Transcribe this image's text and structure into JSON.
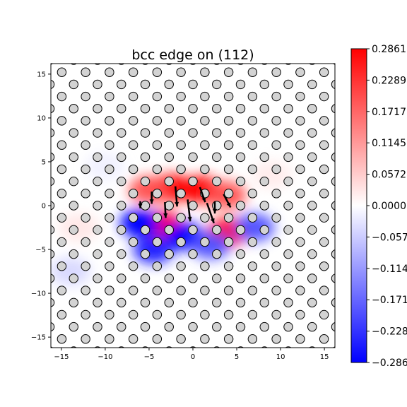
{
  "chart_data": {
    "type": "heatmap",
    "title": "bcc edge on (112)",
    "xlabel": "",
    "ylabel": "",
    "xlim": [
      -16.2,
      16.2
    ],
    "ylim": [
      -16.2,
      16.2
    ],
    "x_ticks": [
      -15,
      -10,
      -5,
      0,
      5,
      10,
      15
    ],
    "y_ticks": [
      -15,
      -10,
      -5,
      0,
      5,
      10,
      15
    ],
    "x_tick_labels": [
      "−15",
      "−10",
      "−5",
      "0",
      "5",
      "10",
      "15"
    ],
    "y_tick_labels": [
      "−15",
      "−10",
      "−5",
      "0",
      "5",
      "10",
      "15"
    ],
    "colormap": "bwr",
    "color_min": -0.2861,
    "color_max": 0.2861,
    "colorbar_ticks": [
      0.2861,
      0.2289,
      0.1717,
      0.1145,
      0.0572,
      0.0,
      -0.0572,
      -0.1145,
      -0.1717,
      -0.2289,
      -0.2861
    ],
    "colorbar_labels": [
      "0.2861",
      "0.2289",
      "0.1717",
      "0.1145",
      "0.0572",
      "0.0000",
      "−0.0572",
      "−0.1145",
      "−0.1717",
      "−0.2289",
      "−0.2861"
    ],
    "lattice": {
      "a1": [
        2.72,
        0.0
      ],
      "a2": [
        1.36,
        1.383
      ],
      "origin": [
        0.0,
        0.0
      ],
      "marker": "circle",
      "marker_face": "#d3d3d3",
      "marker_edge": "#000000"
    },
    "field_blobs": [
      {
        "x": -2.5,
        "y": 2.0,
        "value": 0.2861
      },
      {
        "x": 1.0,
        "y": 1.8,
        "value": 0.2861
      },
      {
        "x": -5.0,
        "y": 1.8,
        "value": 0.2
      },
      {
        "x": 3.8,
        "y": 1.2,
        "value": 0.2
      },
      {
        "x": -3.5,
        "y": -2.2,
        "value": 0.2861
      },
      {
        "x": 4.0,
        "y": -3.0,
        "value": 0.2861
      },
      {
        "x": -13.0,
        "y": -2.5,
        "value": 0.06
      },
      {
        "x": 9.0,
        "y": 3.5,
        "value": 0.05
      },
      {
        "x": -6.0,
        "y": -2.0,
        "value": -0.2861
      },
      {
        "x": -1.0,
        "y": -3.5,
        "value": -0.2861
      },
      {
        "x": 2.0,
        "y": -4.5,
        "value": -0.2
      },
      {
        "x": 7.0,
        "y": -2.5,
        "value": -0.2
      },
      {
        "x": -4.5,
        "y": -5.0,
        "value": -0.25
      },
      {
        "x": -14.0,
        "y": -7.5,
        "value": -0.08
      },
      {
        "x": -10.0,
        "y": 4.5,
        "value": -0.04
      }
    ],
    "arrows": [
      {
        "x": -2.0,
        "y": 2.2,
        "dx": 0.2,
        "dy": -2.3
      },
      {
        "x": -0.6,
        "y": 0.7,
        "dx": 0.3,
        "dy": -2.5
      },
      {
        "x": 0.8,
        "y": 2.1,
        "dx": 0.6,
        "dy": -1.7
      },
      {
        "x": 1.6,
        "y": 0.3,
        "dx": 0.8,
        "dy": -2.3
      },
      {
        "x": 2.5,
        "y": 0.5,
        "dx": 0.0,
        "dy": -1.4
      },
      {
        "x": 3.5,
        "y": 1.3,
        "dx": 0.8,
        "dy": -1.5
      },
      {
        "x": -4.7,
        "y": 1.6,
        "dx": 0.0,
        "dy": -1.4
      },
      {
        "x": -3.2,
        "y": 0.4,
        "dx": 0.1,
        "dy": -1.8
      },
      {
        "x": -6.0,
        "y": 0.5,
        "dx": 0.0,
        "dy": -0.8
      }
    ]
  }
}
